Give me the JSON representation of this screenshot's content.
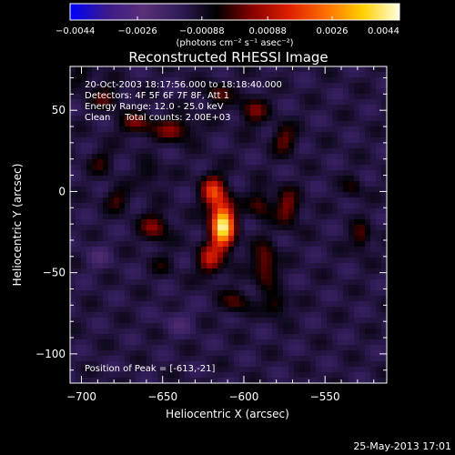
{
  "chart_data": {
    "type": "heatmap",
    "title": "Reconstructed RHESSI Image",
    "xlabel": "Heliocentric X (arcsec)",
    "ylabel": "Heliocentric Y (arcsec)",
    "xlim": [
      -707,
      -512
    ],
    "ylim": [
      -118,
      77
    ],
    "x_ticks": [
      -700,
      -650,
      -600,
      -550
    ],
    "y_ticks": [
      50,
      0,
      -50,
      -100
    ],
    "x_tick_labels": [
      "−700",
      "−650",
      "−600",
      "−550"
    ],
    "y_tick_labels": [
      "50",
      "0",
      "−50",
      "−100"
    ],
    "colorbar": {
      "min": -0.0044,
      "max": 0.0044,
      "ticks": [
        -0.0044,
        -0.0026,
        -0.00088,
        0.00088,
        0.0026,
        0.0044
      ],
      "tick_labels": [
        "−0.0044",
        "−0.0026",
        "−0.00088",
        "0.00088",
        "0.0026",
        "0.0044"
      ],
      "units": "(photons cm⁻² s⁻¹ asec⁻²)",
      "colors": [
        "#0000ff",
        "#3a1a8a",
        "#5a3078",
        "#301c58",
        "#000000",
        "#8a0000",
        "#e02000",
        "#ff7000",
        "#ffd000",
        "#ffffe0"
      ]
    },
    "annotations": [
      "20-Oct-2003 18:17:56.000 to 18:18:40.000",
      "Detectors: 4F 5F 6F 7F 8F, Att 1",
      "Energy Range: 12.0 - 25.0 keV",
      "Clean     Total counts: 2.00E+03"
    ],
    "peak_label": "Position of Peak = [-613,-21]",
    "peak": {
      "x": -613,
      "y": -21,
      "value": 0.0044
    },
    "background_level": -0.0012,
    "sources": [
      {
        "x": -613,
        "y": -21,
        "value": 0.0052,
        "sx": 5,
        "sy": 10
      },
      {
        "x": -619,
        "y": 0,
        "value": 0.0026,
        "sx": 5,
        "sy": 7
      },
      {
        "x": -621,
        "y": -42,
        "value": 0.002,
        "sx": 5,
        "sy": 7
      },
      {
        "x": -643,
        "y": 38,
        "value": 0.0016,
        "sx": 8,
        "sy": 5
      },
      {
        "x": -666,
        "y": 42,
        "value": 0.0014,
        "sx": 7,
        "sy": 5
      },
      {
        "x": -685,
        "y": 58,
        "value": 0.0012,
        "sx": 6,
        "sy": 5
      },
      {
        "x": -616,
        "y": 60,
        "value": 0.0012,
        "sx": 6,
        "sy": 5
      },
      {
        "x": -594,
        "y": 50,
        "value": 0.0014,
        "sx": 6,
        "sy": 6
      },
      {
        "x": -575,
        "y": 32,
        "value": 0.0014,
        "sx": 5,
        "sy": 6
      },
      {
        "x": -573,
        "y": -10,
        "value": 0.0016,
        "sx": 5,
        "sy": 8
      },
      {
        "x": -590,
        "y": -8,
        "value": 0.0013,
        "sx": 5,
        "sy": 6
      },
      {
        "x": -587,
        "y": -45,
        "value": 0.0017,
        "sx": 5,
        "sy": 9
      },
      {
        "x": -580,
        "y": -70,
        "value": 0.0012,
        "sx": 5,
        "sy": 5
      },
      {
        "x": -605,
        "y": -68,
        "value": 0.0012,
        "sx": 6,
        "sy": 5
      },
      {
        "x": -655,
        "y": -22,
        "value": 0.0016,
        "sx": 6,
        "sy": 6
      },
      {
        "x": -678,
        "y": -5,
        "value": 0.0011,
        "sx": 5,
        "sy": 5
      },
      {
        "x": -688,
        "y": 18,
        "value": 0.0009,
        "sx": 5,
        "sy": 5
      },
      {
        "x": -658,
        "y": 10,
        "value": 0.0008,
        "sx": 5,
        "sy": 5
      },
      {
        "x": -528,
        "y": -28,
        "value": 0.0013,
        "sx": 4,
        "sy": 6
      },
      {
        "x": -533,
        "y": 2,
        "value": 0.0008,
        "sx": 4,
        "sy": 5
      },
      {
        "x": -700,
        "y": 70,
        "value": 0.0008,
        "sx": 5,
        "sy": 5
      },
      {
        "x": -650,
        "y": -45,
        "value": 0.0006,
        "sx": 5,
        "sy": 5
      },
      {
        "x": -690,
        "y": -40,
        "value": -0.0006,
        "sx": 6,
        "sy": 6
      },
      {
        "x": -640,
        "y": -80,
        "value": -0.0006,
        "sx": 7,
        "sy": 6
      }
    ]
  },
  "footer": {
    "timestamp": "25-May-2013 17:01"
  }
}
